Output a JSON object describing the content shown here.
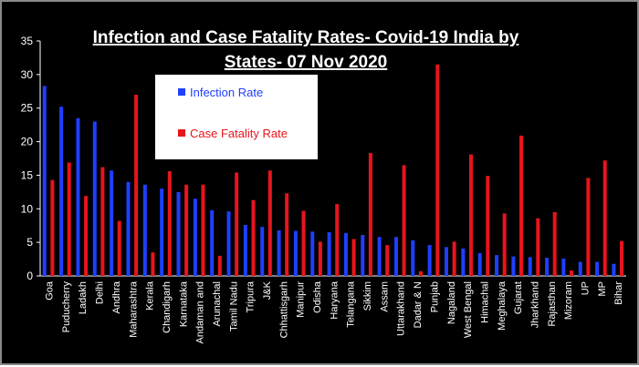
{
  "colors": {
    "background": "#000000",
    "axis": "#ffffff",
    "text": "#ffffff",
    "infection": "#1f3fff",
    "fatality": "#e8141c",
    "legend_bg": "#ffffff"
  },
  "chart_data": {
    "type": "bar",
    "title_line1": "Infection and Case Fatality Rates-   Covid-19 India by",
    "title_line2": "States- 07 Nov 2020",
    "xlabel": "",
    "ylabel": "",
    "ylim": [
      0,
      35
    ],
    "yticks": [
      0,
      5,
      10,
      15,
      20,
      25,
      30,
      35
    ],
    "grid": false,
    "legend_position": "top-center",
    "categories": [
      "Goa",
      "Puducherry",
      "Ladakh",
      "Delhi",
      "Andhra",
      "Maharashtra",
      "Kerala",
      "Chandigarh",
      "Karnataka",
      "Andaman and",
      "Arunachal",
      "Tamil Nadu",
      "Tripura",
      "J&K",
      "Chhattisgarh",
      "Manipur",
      "Odisha",
      "Haryana",
      "Telangana",
      "Sikkim",
      "Assam",
      "Uttarakhand",
      "Dadar & N",
      "Punjab",
      "Nagaland",
      "West Bengal",
      "Himachal",
      "Meghalaya",
      "Gujarat",
      "Jharkhand",
      "Rajasthan",
      "Mizoram",
      "UP",
      "MP",
      "Bihar"
    ],
    "series": [
      {
        "name": "Infection Rate",
        "color": "#1f3fff",
        "values": [
          28.3,
          25.2,
          23.5,
          23.0,
          15.7,
          14.0,
          13.6,
          13.0,
          12.5,
          11.5,
          9.8,
          9.6,
          7.6,
          7.3,
          6.8,
          6.7,
          6.6,
          6.5,
          6.4,
          6.1,
          5.8,
          5.8,
          5.3,
          4.6,
          4.3,
          4.1,
          3.4,
          3.1,
          2.9,
          2.8,
          2.7,
          2.6,
          2.1,
          2.1,
          1.8
        ]
      },
      {
        "name": "Case Fatality Rate",
        "color": "#e8141c",
        "values": [
          14.3,
          16.9,
          11.9,
          16.2,
          8.2,
          27.0,
          3.5,
          15.6,
          13.6,
          13.6,
          3.0,
          15.4,
          11.3,
          15.7,
          12.3,
          9.7,
          5.1,
          10.7,
          5.5,
          18.3,
          4.6,
          16.5,
          0.7,
          31.5,
          5.1,
          18.1,
          14.9,
          9.3,
          20.9,
          8.6,
          9.5,
          0.8,
          14.6,
          17.2,
          5.2
        ]
      }
    ]
  }
}
